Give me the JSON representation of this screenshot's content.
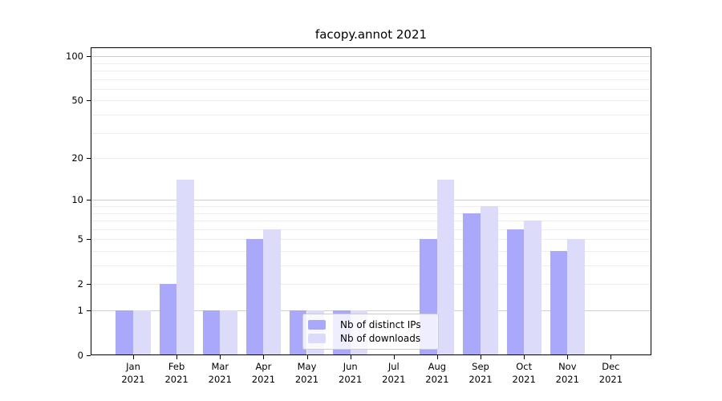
{
  "chart_data": {
    "type": "bar",
    "title": "facopy.annot 2021",
    "categories": [
      "Jan 2021",
      "Feb 2021",
      "Mar 2021",
      "Apr 2021",
      "May 2021",
      "Jun 2021",
      "Jul 2021",
      "Aug 2021",
      "Sep 2021",
      "Oct 2021",
      "Nov 2021",
      "Dec 2021"
    ],
    "series": [
      {
        "name": "Nb of distinct IPs",
        "color": "#a9a8fa",
        "values": [
          1,
          2,
          1,
          5,
          1,
          1,
          0,
          5,
          8,
          6,
          4,
          0
        ]
      },
      {
        "name": "Nb of downloads",
        "color": "#dcdbfa",
        "values": [
          1,
          14,
          1,
          6,
          1,
          1,
          0,
          14,
          9,
          7,
          5,
          0
        ]
      }
    ],
    "xlabel": "",
    "ylabel": "",
    "y_axis": {
      "scale": "log1p",
      "ticks": [
        0,
        1,
        2,
        5,
        10,
        20,
        50,
        100
      ],
      "limit_top": 115,
      "gridlines_major": [
        1,
        10,
        100
      ],
      "gridlines_minor": [
        2,
        3,
        4,
        5,
        6,
        7,
        8,
        9,
        20,
        30,
        40,
        50,
        60,
        70,
        80,
        90
      ]
    },
    "legend": {
      "position": "lower center"
    },
    "grid": true
  }
}
